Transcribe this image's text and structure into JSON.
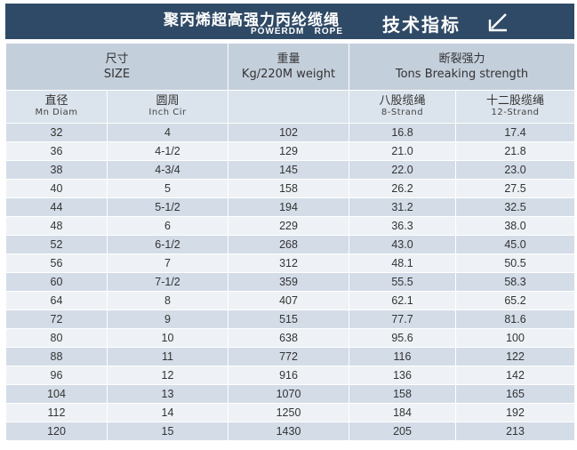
{
  "header": {
    "title_cn": "聚丙烯超高强力丙纶缆绳",
    "title_en": "POWERDM   ROPE",
    "tag": "技术指标"
  },
  "columns": {
    "size": {
      "cn": "尺寸",
      "en": "SIZE"
    },
    "weight": {
      "cn": "重量",
      "en": "Kg/220M weight"
    },
    "strength": {
      "cn": "断裂强力",
      "en": "Tons Breaking strength"
    },
    "diam": {
      "cn": "直径",
      "en": "Mn Diam"
    },
    "cir": {
      "cn": "圆周",
      "en": "Inch Cir"
    },
    "eight": {
      "cn": "八股缆绳",
      "en": "8-Strand"
    },
    "twelve": {
      "cn": "十二股缆绳",
      "en": "12-Strand"
    }
  },
  "rows": [
    [
      "32",
      "4",
      "102",
      "16.8",
      "17.4"
    ],
    [
      "36",
      "4-1/2",
      "129",
      "21.0",
      "21.8"
    ],
    [
      "38",
      "4-3/4",
      "145",
      "22.0",
      "23.0"
    ],
    [
      "40",
      "5",
      "158",
      "26.2",
      "27.5"
    ],
    [
      "44",
      "5-1/2",
      "194",
      "31.2",
      "32.5"
    ],
    [
      "48",
      "6",
      "229",
      "36.3",
      "38.0"
    ],
    [
      "52",
      "6-1/2",
      "268",
      "43.0",
      "45.0"
    ],
    [
      "56",
      "7",
      "312",
      "48.1",
      "50.5"
    ],
    [
      "60",
      "7-1/2",
      "359",
      "55.5",
      "58.3"
    ],
    [
      "64",
      "8",
      "407",
      "62.1",
      "65.2"
    ],
    [
      "72",
      "9",
      "515",
      "77.7",
      "81.6"
    ],
    [
      "80",
      "10",
      "638",
      "95.6",
      "100"
    ],
    [
      "88",
      "11",
      "772",
      "116",
      "122"
    ],
    [
      "96",
      "12",
      "916",
      "136",
      "142"
    ],
    [
      "104",
      "13",
      "1070",
      "158",
      "165"
    ],
    [
      "112",
      "14",
      "1250",
      "184",
      "192"
    ],
    [
      "120",
      "15",
      "1430",
      "205",
      "213"
    ]
  ],
  "colors": {
    "title_bg": "#2f4a66",
    "header_bg": "#c4cfdc",
    "subheader_bg": "#dbe3ec",
    "row_dark": "#d3dce7",
    "row_light": "#eef2f6"
  }
}
